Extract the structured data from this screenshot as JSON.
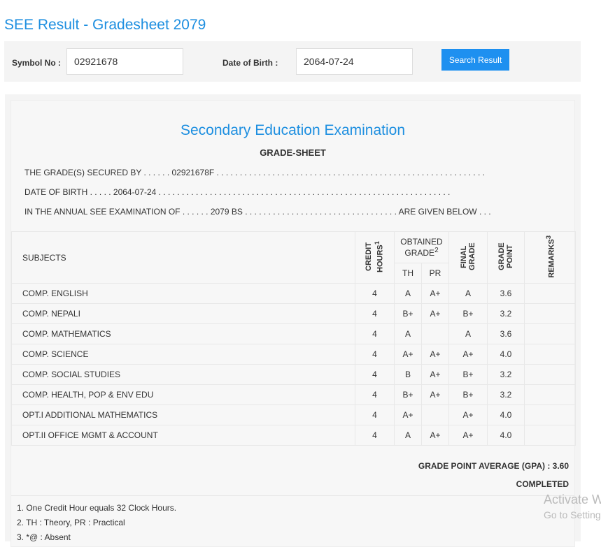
{
  "page_title": "SEE Result - Gradesheet 2079",
  "form": {
    "symbol_label": "Symbol No :",
    "symbol_value": "02921678",
    "dob_label": "Date of Birth :",
    "dob_value": "2064-07-24",
    "search_label": "Search Result"
  },
  "sheet": {
    "heading": "Secondary Education Examination",
    "subheading": "GRADE-SHEET",
    "line1": "THE GRADE(S) SECURED BY . . . . . . 02921678F . . . . . . . . . . . . . . . . . . . . . . . . . . . . . . . . . . . . . . . . . . . . . . . . . . . . . . . . . .",
    "line2": "DATE OF BIRTH . . . . . 2064-07-24 . . . . . . . . . . . . . . . . . . . . . . . . . . . . . . . . . . . . . . . . . . . . . . . . . . . . . . . . . . . . . . .",
    "line3": "IN THE ANNUAL SEE EXAMINATION OF . . . . . . 2079 BS . . . . . . . . . . . . . . . . . . . . . . . . . . . . . . . . . ARE GIVEN BELOW . . .",
    "headers": {
      "subjects": "SUBJECTS",
      "credit": "CREDIT HOURS",
      "credit_sup": "1",
      "obtained": "OBTAINED GRADE",
      "obtained_sup": "2",
      "th": "TH",
      "pr": "PR",
      "final": "FINAL GRADE",
      "point": "GRADE POINT",
      "remarks": "REMARKS",
      "remarks_sup": "3"
    },
    "rows": [
      {
        "subject": "COMP. ENGLISH",
        "credit": "4",
        "th": "A",
        "pr": "A+",
        "final": "A",
        "point": "3.6",
        "remarks": ""
      },
      {
        "subject": "COMP. NEPALI",
        "credit": "4",
        "th": "B+",
        "pr": "A+",
        "final": "B+",
        "point": "3.2",
        "remarks": ""
      },
      {
        "subject": "COMP. MATHEMATICS",
        "credit": "4",
        "th": "A",
        "pr": "",
        "final": "A",
        "point": "3.6",
        "remarks": ""
      },
      {
        "subject": "COMP. SCIENCE",
        "credit": "4",
        "th": "A+",
        "pr": "A+",
        "final": "A+",
        "point": "4.0",
        "remarks": ""
      },
      {
        "subject": "COMP. SOCIAL STUDIES",
        "credit": "4",
        "th": "B",
        "pr": "A+",
        "final": "B+",
        "point": "3.2",
        "remarks": ""
      },
      {
        "subject": "COMP. HEALTH, POP & ENV EDU",
        "credit": "4",
        "th": "B+",
        "pr": "A+",
        "final": "B+",
        "point": "3.2",
        "remarks": ""
      },
      {
        "subject": "OPT.I ADDITIONAL MATHEMATICS",
        "credit": "4",
        "th": "A+",
        "pr": "",
        "final": "A+",
        "point": "4.0",
        "remarks": ""
      },
      {
        "subject": "OPT.II OFFICE MGMT & ACCOUNT",
        "credit": "4",
        "th": "A",
        "pr": "A+",
        "final": "A+",
        "point": "4.0",
        "remarks": ""
      }
    ],
    "gpa": "GRADE POINT AVERAGE (GPA) : 3.60",
    "status": "COMPLETED",
    "notes": [
      "1. One Credit Hour equals 32 Clock Hours.",
      "2. TH : Theory, PR : Practical",
      "3. *@ : Absent"
    ]
  },
  "watermark": {
    "line1": "Activate W",
    "line2": "Go to Setting"
  }
}
